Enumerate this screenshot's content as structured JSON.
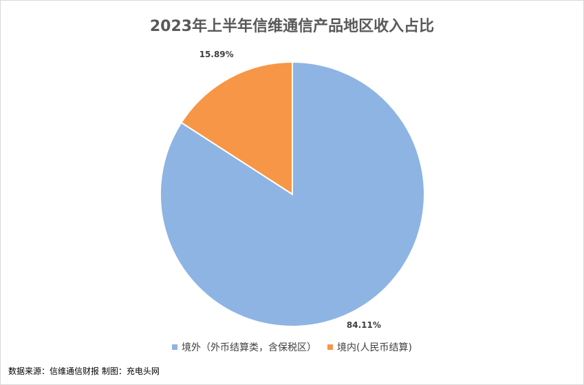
{
  "chart_data": {
    "type": "pie",
    "title": "2023年上半年信维通信产品地区收入占比",
    "series": [
      {
        "name": "境外（外币结算类，含保税区）",
        "value": 84.11,
        "label": "84.11%",
        "color": "#8eb4e3"
      },
      {
        "name": "境内(人民币结算)",
        "value": 15.89,
        "label": "15.89%",
        "color": "#f79646"
      }
    ],
    "legend_position": "bottom",
    "start_angle_deg": 0,
    "direction": "clockwise"
  },
  "footer": {
    "source": "数据来源：信维通信财报 制图：充电头网"
  }
}
